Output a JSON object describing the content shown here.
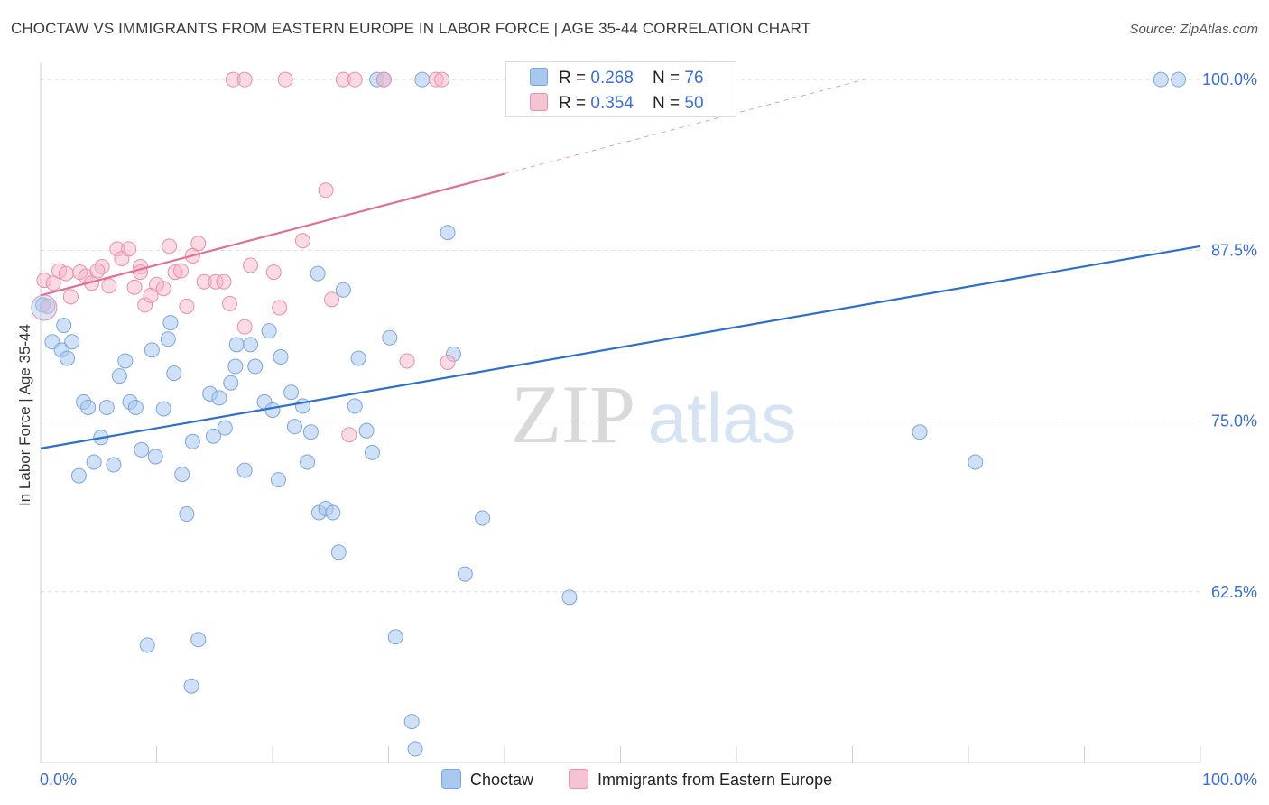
{
  "header": {
    "title": "CHOCTAW VS IMMIGRANTS FROM EASTERN EUROPE IN LABOR FORCE | AGE 35-44 CORRELATION CHART",
    "source": "Source: ZipAtlas.com"
  },
  "legend": {
    "series1": {
      "r_label": "R = ",
      "r_value": "0.268",
      "n_label": "N = ",
      "n_value": "76"
    },
    "series2": {
      "r_label": "R = ",
      "r_value": "0.354",
      "n_label": "N = ",
      "n_value": "50"
    }
  },
  "bottom_legend": {
    "series1": "Choctaw",
    "series2": "Immigrants from Eastern Europe"
  },
  "watermark": {
    "zip": "ZIP",
    "atlas": "atlas"
  },
  "colors": {
    "blue_fill": "#a9c8f0",
    "blue_stroke": "#7aa6de",
    "blue_line": "#2f6fcc",
    "pink_fill": "#f5b6c8",
    "pink_stroke": "#e98fab",
    "pink_line": "#e07096",
    "axis_label": "#3a6fd0"
  },
  "chart_data": {
    "type": "scatter",
    "title": "CHOCTAW VS IMMIGRANTS FROM EASTERN EUROPE IN LABOR FORCE | AGE 35-44 CORRELATION CHART",
    "xlabel": "",
    "ylabel": "In Labor Force | Age 35-44",
    "xlim": [
      0,
      100
    ],
    "ylim": [
      50,
      101.2
    ],
    "x_tick_labels": [
      {
        "value": 0,
        "label": "0.0%"
      },
      {
        "value": 100,
        "label": "100.0%"
      }
    ],
    "y_tick_labels": [
      {
        "value": 100,
        "label": "100.0%"
      },
      {
        "value": 87.5,
        "label": "87.5%"
      },
      {
        "value": 75,
        "label": "75.0%"
      },
      {
        "value": 62.5,
        "label": "62.5%"
      }
    ],
    "grid_y": [
      100,
      87.5,
      75,
      62.5
    ],
    "series": [
      {
        "name": "Choctaw",
        "r": 0.268,
        "n": 76,
        "trend": {
          "x0": 0,
          "y0": 73.0,
          "x1": 100,
          "y1": 87.8,
          "solid_to": 100
        },
        "points": [
          [
            0.2,
            83.5
          ],
          [
            1.0,
            80.8
          ],
          [
            1.8,
            80.2
          ],
          [
            2.0,
            82.0
          ],
          [
            2.3,
            79.6
          ],
          [
            2.7,
            80.8
          ],
          [
            3.3,
            71.0
          ],
          [
            3.7,
            76.4
          ],
          [
            4.1,
            76.0
          ],
          [
            4.6,
            72.0
          ],
          [
            5.2,
            73.8
          ],
          [
            5.7,
            76.0
          ],
          [
            6.3,
            71.8
          ],
          [
            6.8,
            78.3
          ],
          [
            7.3,
            79.4
          ],
          [
            7.7,
            76.4
          ],
          [
            8.2,
            76.0
          ],
          [
            8.7,
            72.9
          ],
          [
            9.2,
            58.6
          ],
          [
            9.6,
            80.2
          ],
          [
            9.9,
            72.4
          ],
          [
            10.6,
            75.9
          ],
          [
            11.0,
            81.0
          ],
          [
            11.5,
            78.5
          ],
          [
            12.2,
            71.1
          ],
          [
            12.6,
            68.2
          ],
          [
            13.1,
            73.5
          ],
          [
            13.6,
            59.0
          ],
          [
            14.6,
            77.0
          ],
          [
            14.9,
            73.9
          ],
          [
            15.4,
            76.7
          ],
          [
            15.9,
            74.5
          ],
          [
            16.4,
            77.8
          ],
          [
            16.9,
            80.6
          ],
          [
            17.6,
            71.4
          ],
          [
            18.1,
            80.6
          ],
          [
            18.5,
            79.0
          ],
          [
            19.3,
            76.4
          ],
          [
            19.7,
            81.6
          ],
          [
            20.5,
            70.7
          ],
          [
            20.7,
            79.7
          ],
          [
            21.6,
            77.1
          ],
          [
            21.9,
            74.6
          ],
          [
            22.6,
            76.1
          ],
          [
            23.0,
            72.0
          ],
          [
            23.3,
            74.2
          ],
          [
            24.0,
            68.3
          ],
          [
            24.6,
            68.6
          ],
          [
            25.2,
            68.3
          ],
          [
            25.7,
            65.4
          ],
          [
            26.1,
            84.6
          ],
          [
            27.1,
            76.1
          ],
          [
            28.1,
            74.3
          ],
          [
            28.6,
            72.7
          ],
          [
            30.1,
            81.1
          ],
          [
            30.6,
            59.2
          ],
          [
            29.6,
            100.0
          ],
          [
            32.9,
            100.0
          ],
          [
            35.1,
            88.8
          ],
          [
            35.6,
            79.9
          ],
          [
            36.6,
            63.8
          ],
          [
            38.1,
            67.9
          ],
          [
            45.6,
            62.1
          ],
          [
            75.8,
            74.2
          ],
          [
            80.6,
            72.0
          ],
          [
            96.6,
            100.0
          ],
          [
            98.1,
            100.0
          ],
          [
            23.9,
            85.8
          ],
          [
            13.0,
            55.6
          ],
          [
            32.0,
            53.0
          ],
          [
            32.3,
            51.0
          ],
          [
            29.0,
            100.0
          ],
          [
            27.4,
            79.6
          ],
          [
            20.0,
            75.8
          ],
          [
            16.8,
            79.0
          ],
          [
            11.2,
            82.2
          ]
        ]
      },
      {
        "name": "Immigrants from Eastern Europe",
        "r": 0.354,
        "n": 50,
        "trend": {
          "x0": 0,
          "y0": 84.2,
          "x1": 71,
          "y1": 100.0,
          "solid_to": 40
        },
        "points": [
          [
            0.3,
            85.3
          ],
          [
            0.6,
            83.4
          ],
          [
            1.1,
            85.1
          ],
          [
            1.6,
            86.0
          ],
          [
            2.2,
            85.8
          ],
          [
            2.6,
            84.1
          ],
          [
            3.4,
            85.9
          ],
          [
            3.9,
            85.6
          ],
          [
            4.4,
            85.1
          ],
          [
            5.3,
            86.3
          ],
          [
            5.9,
            84.9
          ],
          [
            6.6,
            87.6
          ],
          [
            7.0,
            86.9
          ],
          [
            7.6,
            87.6
          ],
          [
            8.1,
            84.8
          ],
          [
            8.6,
            86.3
          ],
          [
            9.0,
            83.5
          ],
          [
            9.5,
            84.2
          ],
          [
            10.0,
            85.0
          ],
          [
            10.6,
            84.7
          ],
          [
            11.1,
            87.8
          ],
          [
            11.6,
            85.9
          ],
          [
            12.1,
            86.0
          ],
          [
            12.6,
            83.4
          ],
          [
            13.1,
            87.1
          ],
          [
            13.6,
            88.0
          ],
          [
            14.1,
            85.2
          ],
          [
            15.1,
            85.2
          ],
          [
            15.8,
            85.2
          ],
          [
            16.3,
            83.6
          ],
          [
            17.6,
            81.9
          ],
          [
            18.1,
            86.4
          ],
          [
            20.1,
            85.9
          ],
          [
            20.6,
            83.3
          ],
          [
            22.6,
            88.2
          ],
          [
            24.6,
            91.9
          ],
          [
            25.1,
            83.9
          ],
          [
            26.6,
            74.0
          ],
          [
            31.6,
            79.4
          ],
          [
            35.1,
            79.3
          ],
          [
            16.6,
            100.0
          ],
          [
            17.6,
            100.0
          ],
          [
            21.1,
            100.0
          ],
          [
            26.1,
            100.0
          ],
          [
            27.1,
            100.0
          ],
          [
            29.6,
            100.0
          ],
          [
            34.1,
            100.0
          ],
          [
            34.6,
            100.0
          ],
          [
            8.6,
            85.9
          ],
          [
            4.9,
            86.0
          ]
        ]
      }
    ]
  }
}
